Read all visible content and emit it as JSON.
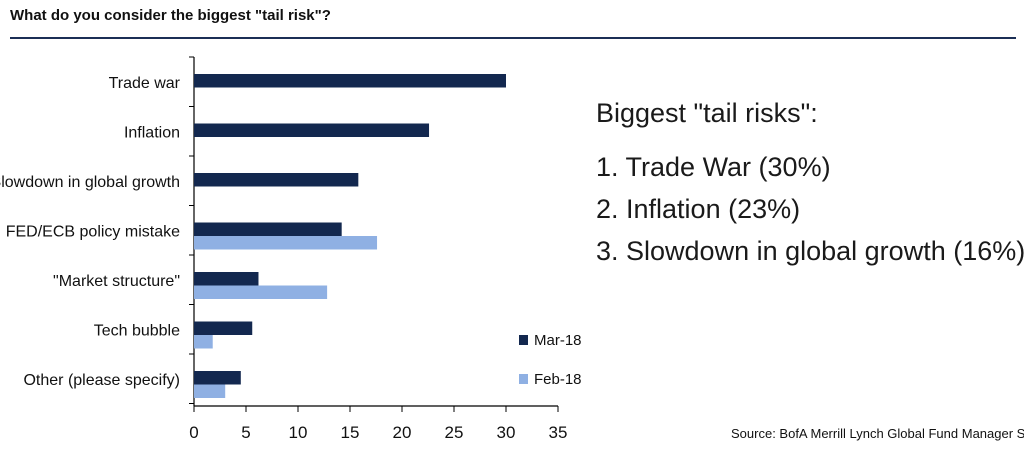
{
  "title": "What do you consider the biggest \"tail risk\"?",
  "colors": {
    "accent": "#1b2e55",
    "mar18": "#13284f",
    "feb18": "#8fb0e3"
  },
  "chart_data": {
    "type": "bar",
    "orientation": "horizontal",
    "categories": [
      "Trade war",
      "Inflation",
      "Slowdown in global growth",
      "FED/ECB policy mistake",
      "\"Market structure\"",
      "Tech bubble",
      "Other (please specify)"
    ],
    "series": [
      {
        "name": "Mar-18",
        "color": "#13284f",
        "values": [
          30,
          22.6,
          15.8,
          14.2,
          6.2,
          5.6,
          4.5
        ]
      },
      {
        "name": "Feb-18",
        "color": "#8fb0e3",
        "values": [
          null,
          null,
          null,
          17.6,
          12.8,
          1.8,
          3.0
        ]
      }
    ],
    "xlim": [
      0,
      35
    ],
    "xticks": [
      "0",
      "5",
      "10",
      "15",
      "20",
      "25",
      "30",
      "35"
    ],
    "grid": false,
    "legend_position": "bottom-right"
  },
  "panel": {
    "heading": "Biggest \"tail risks\":",
    "items": [
      "1. Trade War (30%)",
      "2. Inflation (23%)",
      "3. Slowdown in global growth (16%)"
    ]
  },
  "source": "Source: BofA Merrill Lynch Global Fund Manager Survey"
}
